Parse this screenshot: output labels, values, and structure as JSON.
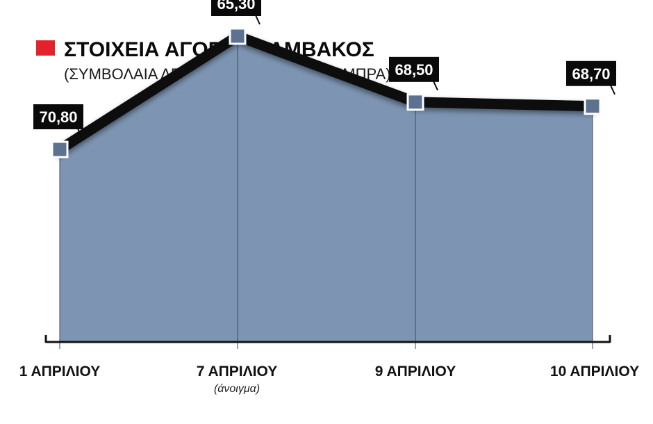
{
  "chart_data": {
    "type": "area",
    "title": "ΣΤΟΙΧΕΙΑ ΑΓΟΡΑΣ ΒΑΜΒΑΚΟΣ",
    "subtitle": "(ΣΥΜΒΟΛΑΙΑ ΔΕΚΕΜΒΡΙΟΥ, ΣΕΝΤΣ / ΛΙΜΠΡΑ)",
    "categories": [
      "1 ΑΠΡΙΛΙΟΥ",
      "7 ΑΠΡΙΛΙΟΥ",
      "9 ΑΠΡΙΛΙΟΥ",
      "10 ΑΠΡΙΛΙΟΥ"
    ],
    "category_notes": [
      "",
      "(άνοιγμα)",
      "",
      ""
    ],
    "values": [
      70.8,
      65.3,
      68.5,
      68.7
    ],
    "value_labels": [
      "70,80",
      "65,30",
      "68,50",
      "68,70"
    ],
    "xlabel": "",
    "ylabel": "",
    "grid": false,
    "legend": "none"
  },
  "colors": {
    "title_marker": "#e3232b",
    "area_fill": "#7d95b3",
    "line": "#0a0a0a",
    "marker_fill": "#5d7290",
    "label_box": "#0a0a0a",
    "axis": "#111111"
  },
  "icons": [
    "cotton-icon"
  ]
}
